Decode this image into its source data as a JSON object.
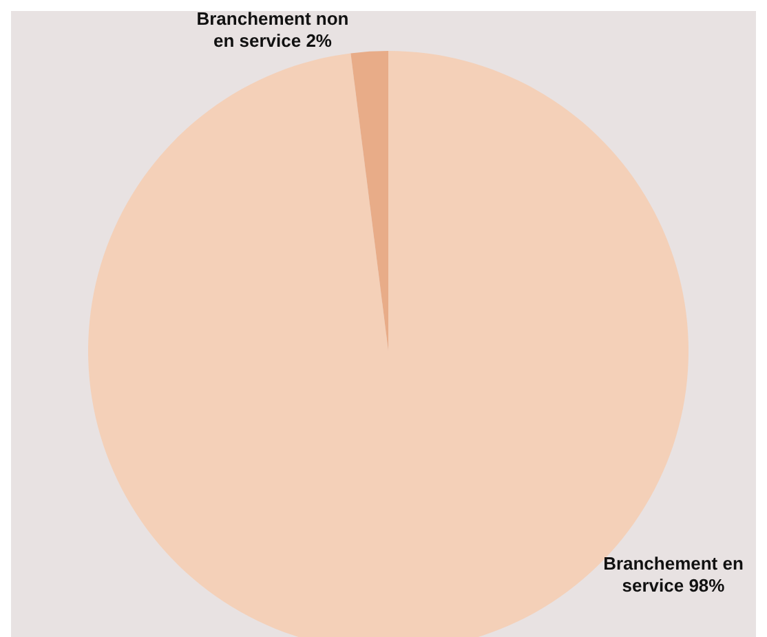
{
  "chart_data": {
    "type": "pie",
    "categories": [
      "Branchement en service",
      "Branchement non en service"
    ],
    "values": [
      98,
      2
    ],
    "colors": [
      "#f4d0b8",
      "#e8ac88"
    ],
    "value_labels": [
      "98%",
      "2%"
    ],
    "legend": false
  }
}
